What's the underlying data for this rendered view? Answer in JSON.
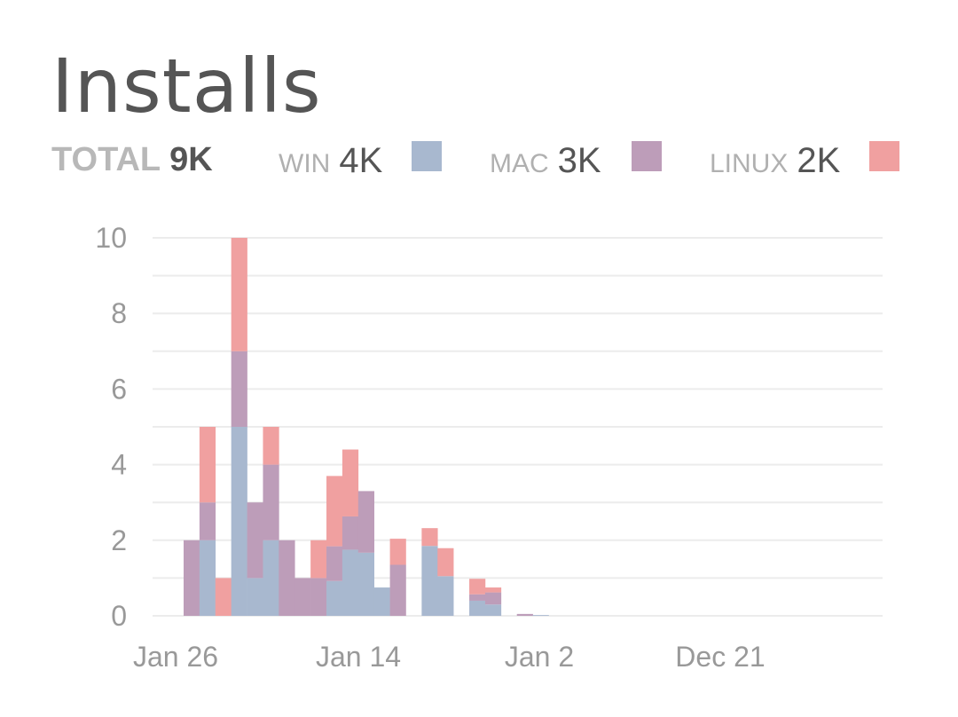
{
  "title": "Installs",
  "legend": {
    "total_label": "TOTAL",
    "total_value": "9K",
    "items": [
      {
        "label": "WIN",
        "value": "4K",
        "color": "#a8b8cf"
      },
      {
        "label": "MAC",
        "value": "3K",
        "color": "#bd9db9"
      },
      {
        "label": "LINUX",
        "value": "2K",
        "color": "#f0a0a0"
      }
    ]
  },
  "chart_data": {
    "type": "bar",
    "stacked": true,
    "x_ticks": [
      "Jan 26",
      "Jan 14",
      "Jan 2",
      "Dec 21"
    ],
    "y_ticks": [
      "0",
      "2",
      "4",
      "6",
      "8",
      "10"
    ],
    "ylim": [
      0,
      10
    ],
    "grid": true,
    "x_slot_count": 46,
    "series": [
      {
        "name": "WIN",
        "color": "#a8b8cf",
        "values": [
          0,
          2,
          0,
          5,
          1,
          2,
          0,
          0,
          0,
          0.92,
          1.75,
          1.67,
          0.75,
          0,
          0,
          1.85,
          1.05,
          0,
          0.4,
          0.3,
          0,
          0,
          0.02
        ]
      },
      {
        "name": "MAC",
        "color": "#bd9db9",
        "values": [
          2,
          1,
          0,
          2,
          2,
          2,
          2,
          1,
          1,
          0.92,
          0.88,
          1.63,
          0,
          1.35,
          0,
          0,
          0,
          0,
          0.17,
          0.32,
          0,
          0.05,
          0
        ]
      },
      {
        "name": "LINUX",
        "color": "#f0a0a0",
        "values": [
          0,
          2,
          1,
          3,
          0,
          1,
          0,
          0,
          1,
          1.86,
          1.77,
          0,
          0,
          0.69,
          0,
          0.47,
          0.74,
          0,
          0.41,
          0.13,
          0,
          0,
          0
        ]
      }
    ]
  }
}
